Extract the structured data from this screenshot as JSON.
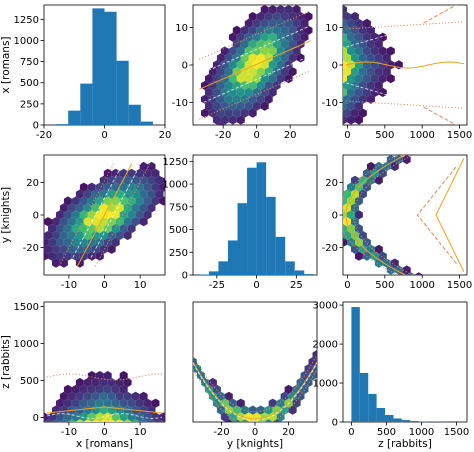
{
  "figure": {
    "kind": "corner plot of three variables",
    "colors": {
      "hist_bar": "#1f77b4",
      "hexbin_low": "#440154",
      "hexbin_high": "#fde725",
      "contour_line": "#f0a020",
      "quantile_line": "#e08a5a",
      "guide_line": "#ffffff"
    }
  },
  "chart_data": [
    {
      "id": "x-hist",
      "type": "bar",
      "row": 0,
      "col": 0,
      "title": "",
      "xlabel": "",
      "ylabel": "x [romans]",
      "xlim": [
        -20,
        20
      ],
      "ylim": [
        0,
        1420
      ],
      "xticks": [
        "-20",
        "0",
        "20"
      ],
      "yticks": [
        "0",
        "250",
        "500",
        "750",
        "1000",
        "1250"
      ],
      "bin_edges": [
        -16,
        -12,
        -8,
        -4,
        0,
        4,
        8,
        12,
        16
      ],
      "values": [
        10,
        170,
        490,
        1380,
        1340,
        760,
        240,
        40
      ]
    },
    {
      "id": "x-hist-margins",
      "type": "bar",
      "row": 0,
      "col": 0,
      "bin_edges": [
        -16,
        -12
      ],
      "values": [
        0
      ]
    },
    {
      "id": "y-vs-x",
      "type": "heatmap",
      "row": 0,
      "col": 1,
      "xlim": [
        -38,
        36
      ],
      "ylim": [
        -16,
        16
      ],
      "xticks": [
        "-20",
        "0",
        "20"
      ],
      "yticks": [
        "-10",
        "0",
        "10"
      ],
      "correlation": 0.6,
      "x_sd": 10,
      "y_sd": 5,
      "y_mean": 0,
      "x_mean": 0,
      "density_shape": "linear"
    },
    {
      "id": "z-vs-x",
      "type": "heatmap",
      "row": 0,
      "col": 2,
      "xlim": [
        -60,
        1600
      ],
      "ylim": [
        -16,
        16
      ],
      "xticks": [
        "0",
        "500",
        "1000",
        "1500"
      ],
      "yticks": [
        "-10",
        "0",
        "10"
      ],
      "density_shape": "z-col"
    },
    {
      "id": "x-vs-y",
      "type": "heatmap",
      "row": 1,
      "col": 0,
      "xlim": [
        -17,
        17
      ],
      "ylim": [
        -37,
        37
      ],
      "xticks": [
        "-10",
        "0",
        "10"
      ],
      "yticks": [
        "-20",
        "0",
        "20"
      ],
      "ylabel": "y [knights]",
      "density_shape": "linear-t"
    },
    {
      "id": "y-hist",
      "type": "bar",
      "row": 1,
      "col": 1,
      "xlim": [
        -40,
        38
      ],
      "ylim": [
        0,
        1320
      ],
      "xticks": [
        "-25",
        "0",
        "25"
      ],
      "yticks": [
        "0",
        "250",
        "500",
        "750",
        "1000",
        "1250"
      ],
      "bin_edges": [
        -36,
        -30,
        -24,
        -18,
        -12,
        -6,
        0,
        6,
        12,
        18,
        24,
        30,
        36
      ],
      "values": [
        5,
        40,
        150,
        380,
        790,
        1180,
        1240,
        860,
        420,
        150,
        50,
        10
      ]
    },
    {
      "id": "z-vs-y",
      "type": "heatmap",
      "row": 1,
      "col": 2,
      "xlim": [
        -60,
        1600
      ],
      "ylim": [
        -37,
        37
      ],
      "xticks": [
        "0",
        "500",
        "1000",
        "1500"
      ],
      "yticks": [
        "-20",
        "0",
        "20"
      ],
      "density_shape": "parabola-side"
    },
    {
      "id": "x-vs-z",
      "type": "heatmap",
      "row": 2,
      "col": 0,
      "xlim": [
        -17,
        17
      ],
      "ylim": [
        -60,
        1560
      ],
      "xticks": [
        "-10",
        "0",
        "10"
      ],
      "yticks": [
        "0",
        "500",
        "1000",
        "1500"
      ],
      "xlabel": "x [romans]",
      "ylabel": "z [rabbits]",
      "density_shape": "z-row"
    },
    {
      "id": "y-vs-z",
      "type": "heatmap",
      "row": 2,
      "col": 1,
      "xlim": [
        -37,
        37
      ],
      "ylim": [
        -60,
        1560
      ],
      "xticks": [
        "-20",
        "0",
        "20"
      ],
      "yticks": [],
      "xlabel": "y [knights]",
      "density_shape": "parabola-up"
    },
    {
      "id": "z-hist",
      "type": "bar",
      "row": 2,
      "col": 2,
      "xlim": [
        -120,
        1650
      ],
      "ylim": [
        0,
        3080
      ],
      "xticks": [
        "0",
        "500",
        "1000",
        "1500"
      ],
      "yticks": [
        "0",
        "1000",
        "2000",
        "3000"
      ],
      "xlabel": "z [rabbits]",
      "bin_edges": [
        0,
        120,
        240,
        360,
        480,
        600,
        720,
        840,
        960,
        1080,
        1200,
        1320,
        1440,
        1560
      ],
      "values": [
        2950,
        1260,
        720,
        360,
        180,
        90,
        50,
        25,
        12,
        6,
        4,
        2,
        1
      ]
    }
  ]
}
